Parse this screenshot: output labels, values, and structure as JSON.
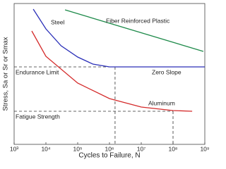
{
  "chart_data": {
    "type": "line",
    "xlabel": "Cycles to Failure, N",
    "ylabel": "Stress, Sa or Sr or Smax",
    "xscale": "log",
    "xlim": [
      1000,
      1000000000
    ],
    "xticks": [
      {
        "value": 1000,
        "label": "10³"
      },
      {
        "value": 10000,
        "label": "10⁴"
      },
      {
        "value": 100000,
        "label": "10⁵"
      },
      {
        "value": 1000000,
        "label": "10⁶"
      },
      {
        "value": 10000000,
        "label": "10⁷"
      },
      {
        "value": 100000000,
        "label": "10⁸"
      },
      {
        "value": 1000000000,
        "label": "10⁹"
      }
    ],
    "ylim": [
      0,
      100
    ],
    "series": [
      {
        "name": "Steel",
        "color": "#2a2fb8",
        "x": [
          4000,
          10000,
          30000,
          100000,
          300000,
          1000000,
          1500000,
          1000000000
        ],
        "values": [
          96,
          82,
          70,
          62,
          57,
          55,
          55,
          55
        ]
      },
      {
        "name": "Aluminum",
        "color": "#d42a2a",
        "x": [
          3600,
          10000,
          100000,
          1000000,
          10000000,
          100000000,
          400000000
        ],
        "values": [
          80.5,
          62.5,
          43.5,
          32.5,
          26.5,
          24,
          23.5
        ]
      },
      {
        "name": "Fiber Reinforced Plastic",
        "color": "#1e8a4a",
        "x": [
          40000,
          900000000
        ],
        "values": [
          95.5,
          66
        ]
      }
    ],
    "reference_lines": [
      {
        "label": "Endurance Limit",
        "y": 55,
        "x": 1500000
      },
      {
        "label": "Fatigue Strength",
        "y": 23.5,
        "x": 100000000
      }
    ],
    "annotations": [
      "Zero Slope"
    ]
  }
}
